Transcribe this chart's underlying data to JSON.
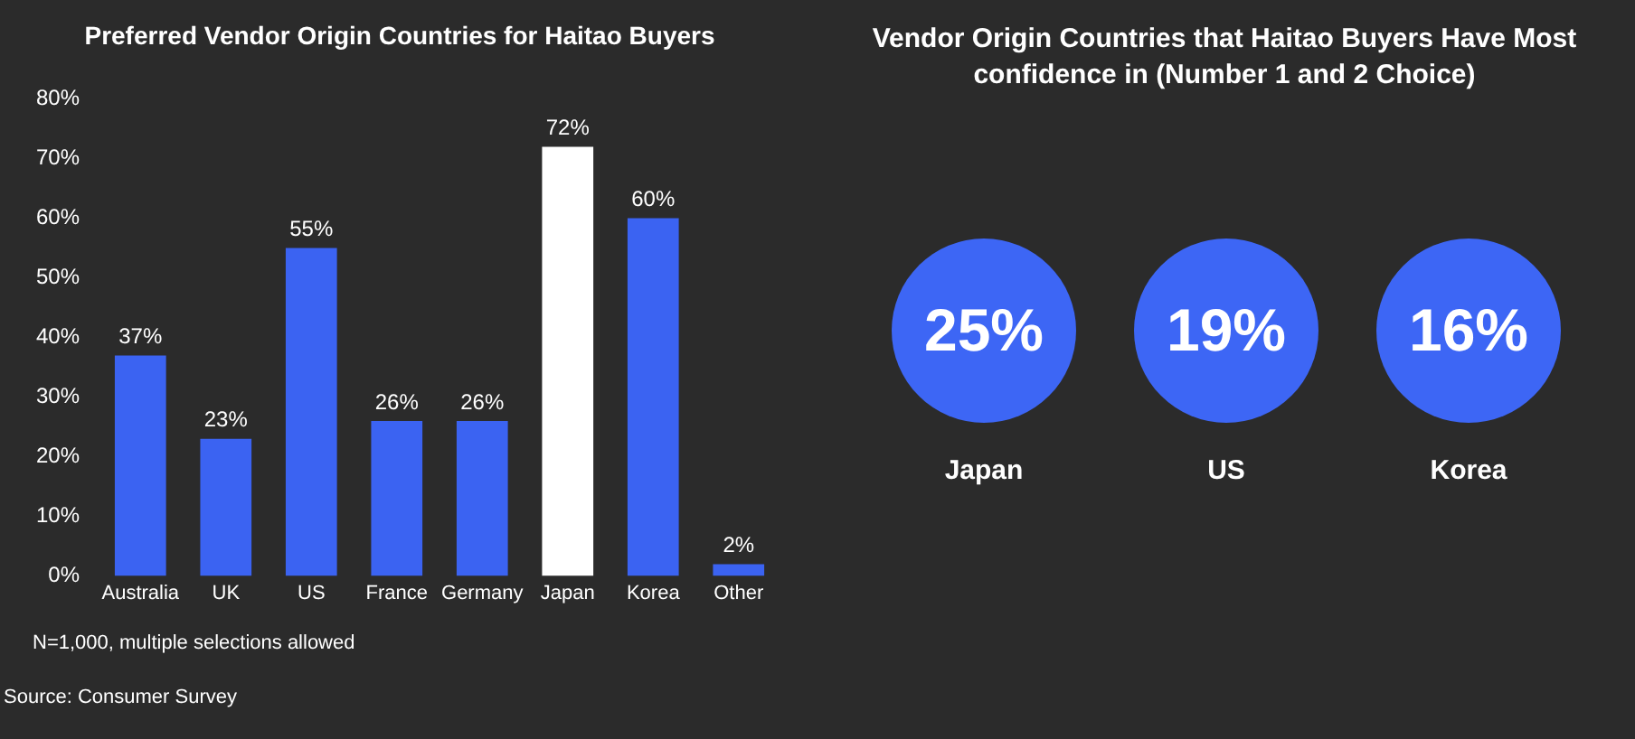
{
  "chart_data": [
    {
      "type": "bar",
      "title": "Preferred Vendor Origin Countries for Haitao Buyers",
      "categories": [
        "Australia",
        "UK",
        "US",
        "France",
        "Germany",
        "Japan",
        "Korea",
        "Other"
      ],
      "values": [
        37,
        23,
        55,
        26,
        26,
        72,
        60,
        2
      ],
      "colors": [
        "#3b63f2",
        "#3b63f2",
        "#3b63f2",
        "#3b63f2",
        "#3b63f2",
        "#ffffff",
        "#3b63f2",
        "#3b63f2"
      ],
      "value_labels": [
        "37%",
        "23%",
        "55%",
        "26%",
        "26%",
        "72%",
        "60%",
        "2%"
      ],
      "ylim": [
        0,
        80
      ],
      "yticks": [
        {
          "value": 0,
          "label": "0%"
        },
        {
          "value": 10,
          "label": "10%"
        },
        {
          "value": 20,
          "label": "20%"
        },
        {
          "value": 30,
          "label": "30%"
        },
        {
          "value": 40,
          "label": "40%"
        },
        {
          "value": 50,
          "label": "50%"
        },
        {
          "value": 60,
          "label": "60%"
        },
        {
          "value": 70,
          "label": "70%"
        },
        {
          "value": 80,
          "label": "80%"
        }
      ],
      "grid": false,
      "legend": false,
      "annotations": [
        "N=1,000, multiple selections allowed",
        "Source: Consumer Survey"
      ]
    },
    {
      "type": "other",
      "title": "Vendor Origin Countries that Haitao Buyers Have Most confidence in (Number 1 and 2 Choice)",
      "categories": [
        "Japan",
        "US",
        "Korea"
      ],
      "values": [
        25,
        19,
        16
      ],
      "value_labels": [
        "25%",
        "19%",
        "16%"
      ],
      "color": "#3d66f5"
    }
  ]
}
